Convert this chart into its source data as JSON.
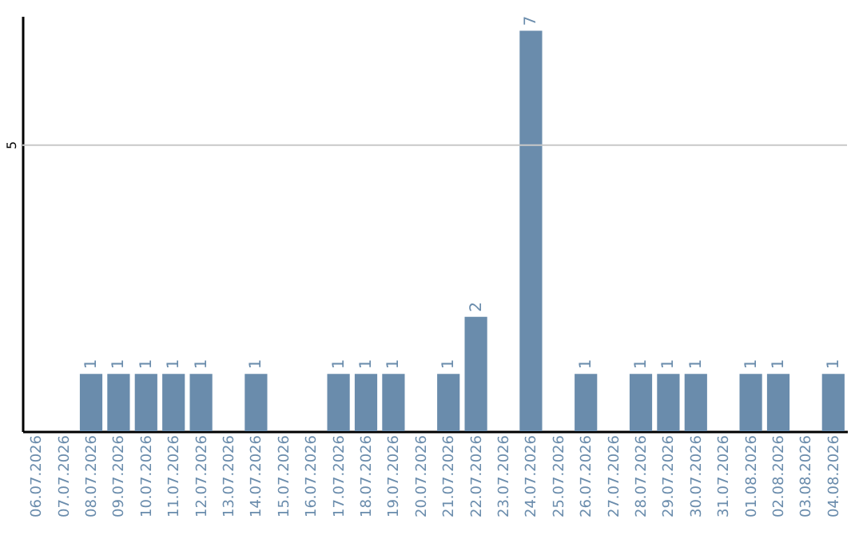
{
  "chart_data": {
    "type": "bar",
    "categories": [
      "06.07.2026",
      "07.07.2026",
      "08.07.2026",
      "09.07.2026",
      "10.07.2026",
      "11.07.2026",
      "12.07.2026",
      "13.07.2026",
      "14.07.2026",
      "15.07.2026",
      "16.07.2026",
      "17.07.2026",
      "18.07.2026",
      "19.07.2026",
      "20.07.2026",
      "21.07.2026",
      "22.07.2026",
      "23.07.2026",
      "24.07.2026",
      "25.07.2026",
      "26.07.2026",
      "27.07.2026",
      "28.07.2026",
      "29.07.2026",
      "30.07.2026",
      "31.07.2026",
      "01.08.2026",
      "02.08.2026",
      "03.08.2026",
      "04.08.2026"
    ],
    "values": [
      0,
      0,
      1,
      1,
      1,
      1,
      1,
      0,
      1,
      0,
      0,
      1,
      1,
      1,
      0,
      1,
      2,
      0,
      7,
      0,
      1,
      0,
      1,
      1,
      1,
      0,
      1,
      1,
      0,
      1
    ],
    "value_labels": [
      null,
      null,
      "1",
      "1",
      "1",
      "1",
      "1",
      null,
      "1",
      null,
      null,
      "1",
      "1",
      "1",
      null,
      "1",
      "2",
      null,
      "7",
      null,
      "1",
      null,
      "1",
      "1",
      "1",
      null,
      "1",
      "1",
      null,
      "1"
    ],
    "color": "#6a8cac",
    "ylim": [
      0,
      7.26
    ],
    "ref_lines": [
      {
        "axis": "y",
        "value": 5,
        "label": "5",
        "color": "#c8c8c8"
      }
    ]
  }
}
